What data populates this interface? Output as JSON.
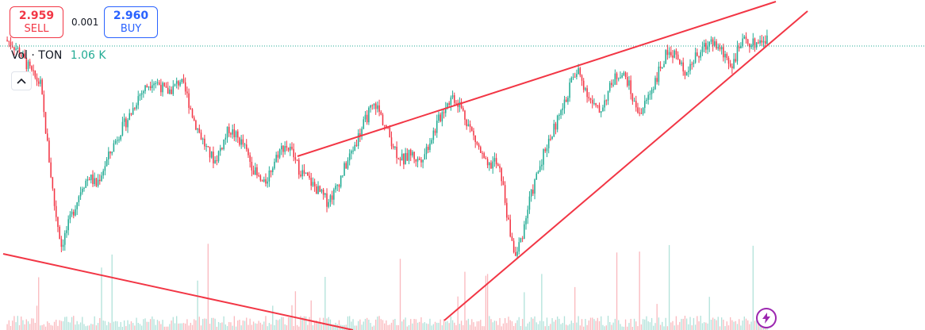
{
  "trade": {
    "sell_price": "2.959",
    "sell_label": "SELL",
    "spread": "0.001",
    "buy_price": "2.960",
    "buy_label": "BUY"
  },
  "volume_legend": {
    "label": "Vol · TON",
    "value": "1.06 K"
  },
  "colors": {
    "up": "#22ab94",
    "down": "#f23645",
    "trendline": "#f23645",
    "sell": "#f23645",
    "buy": "#2962ff",
    "flash": "#9c27b0"
  },
  "icons": {
    "collapse": "chevron-up-icon",
    "flash": "lightning-icon"
  },
  "chart_data": {
    "type": "candlestick",
    "note_series": "approximate price path",
    "close": [
      2.96,
      2.95,
      2.93,
      2.9,
      2.87,
      2.85,
      2.7,
      2.55,
      2.45,
      2.5,
      2.55,
      2.6,
      2.62,
      2.6,
      2.64,
      2.68,
      2.72,
      2.75,
      2.78,
      2.82,
      2.84,
      2.86,
      2.85,
      2.83,
      2.84,
      2.86,
      2.82,
      2.76,
      2.72,
      2.68,
      2.66,
      2.7,
      2.74,
      2.72,
      2.7,
      2.66,
      2.62,
      2.6,
      2.64,
      2.68,
      2.7,
      2.68,
      2.64,
      2.62,
      2.6,
      2.58,
      2.56,
      2.58,
      2.62,
      2.66,
      2.7,
      2.74,
      2.78,
      2.8,
      2.76,
      2.72,
      2.68,
      2.66,
      2.68,
      2.66,
      2.68,
      2.72,
      2.76,
      2.8,
      2.82,
      2.8,
      2.76,
      2.72,
      2.68,
      2.64,
      2.66,
      2.62,
      2.5,
      2.42,
      2.48,
      2.56,
      2.62,
      2.68,
      2.72,
      2.76,
      2.8,
      2.86,
      2.88,
      2.84,
      2.8,
      2.78,
      2.82,
      2.86,
      2.88,
      2.86,
      2.8,
      2.78,
      2.82,
      2.86,
      2.9,
      2.94,
      2.92,
      2.88,
      2.9,
      2.92,
      2.94,
      2.96,
      2.94,
      2.92,
      2.9,
      2.94,
      2.96,
      2.95,
      2.96,
      2.96
    ],
    "horizontal_line": 2.96
  }
}
